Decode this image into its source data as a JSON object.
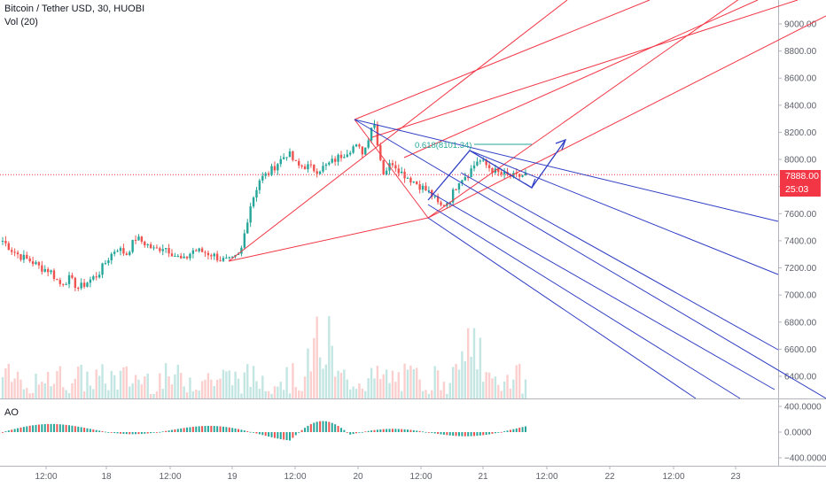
{
  "header": {
    "symbol_line": "Bitcoin / Tether USD, 30, HUOBI",
    "volume_line": "Vol (20)"
  },
  "ao_panel": {
    "label": "AO"
  },
  "badges": {
    "last_price": "7888.00",
    "countdown": "25:03"
  },
  "annotation": {
    "fib_label": "0.618(8101.34)",
    "fib_color": "#26a69a"
  },
  "colors": {
    "up": "#26a69a",
    "down": "#ef5350",
    "pitchfork_red": "#f23645",
    "pitchfork_blue": "#2f3ec4",
    "axis_text": "#5d606b",
    "badge": "#f23645"
  },
  "chart_data": {
    "type": "candlestick",
    "title": "Bitcoin / Tether USD, 30, HUOBI",
    "xlabel": "",
    "ylabel": "",
    "y_ticks": [
      6400,
      6600,
      6800,
      7000,
      7200,
      7400,
      7600,
      7800,
      8000,
      8200,
      8400,
      8600,
      8800,
      9000
    ],
    "ylim": [
      6220,
      9060
    ],
    "x_ticks": [
      "12:00",
      "18",
      "12:00",
      "19",
      "12:00",
      "20",
      "12:00",
      "21",
      "12:00",
      "22",
      "12:00",
      "23"
    ],
    "price_path": [
      7400,
      7330,
      7280,
      7250,
      7200,
      7180,
      7080,
      7120,
      7050,
      7100,
      7150,
      7260,
      7350,
      7300,
      7420,
      7380,
      7330,
      7360,
      7300,
      7250,
      7330,
      7320,
      7300,
      7260,
      7250,
      7300,
      7650,
      7850,
      7900,
      7980,
      8050,
      7950,
      7950,
      7920,
      7950,
      8000,
      8050,
      8100,
      8050,
      8300,
      7900,
      7980,
      7900,
      7850,
      7800,
      7750,
      7650,
      7700,
      7850,
      7900,
      8000,
      7950,
      7900,
      7880,
      7870,
      7888
    ],
    "last_price": 7888.0,
    "annotation": "0.618(8101.34)",
    "series": [
      {
        "name": "Vol (20)",
        "type": "volume"
      },
      {
        "name": "AO",
        "type": "histogram",
        "ylim": [
          -450,
          450
        ],
        "y_ticks": [
          400,
          0,
          -400
        ]
      }
    ]
  }
}
